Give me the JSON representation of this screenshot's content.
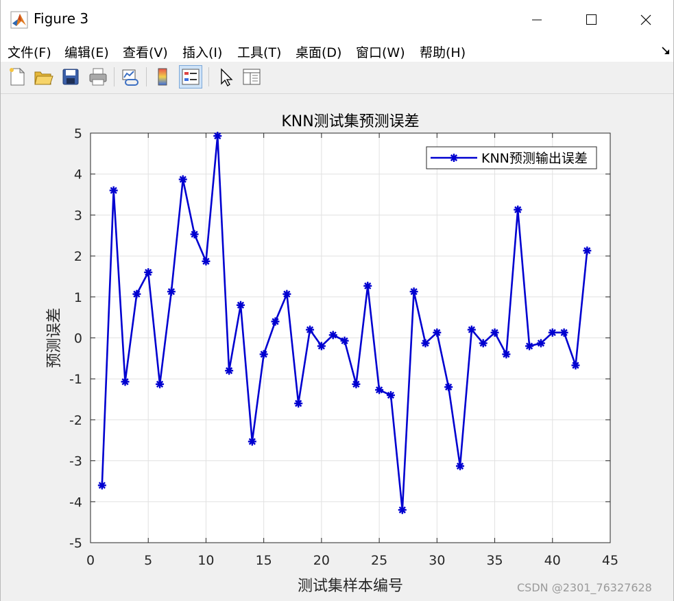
{
  "window": {
    "title": "Figure 3",
    "controls": {
      "minimize": "minimize",
      "maximize": "maximize",
      "close": "close"
    }
  },
  "menu": {
    "items": [
      "文件(F)",
      "编辑(E)",
      "查看(V)",
      "插入(I)",
      "工具(T)",
      "桌面(D)",
      "窗口(W)",
      "帮助(H)"
    ]
  },
  "toolbar": {
    "icons": [
      "new-figure-icon",
      "open-file-icon",
      "save-icon",
      "print-icon",
      "link-plot-icon",
      "colorbar-icon",
      "legend-icon",
      "edit-plot-arrow-icon",
      "property-inspector-icon"
    ]
  },
  "watermark": "CSDN @2301_76327628",
  "colors": {
    "series": "#0000d0",
    "grid": "#e1e1e1",
    "axes": "#262626"
  },
  "chart_data": {
    "type": "line",
    "title": "KNN测试集预测误差",
    "xlabel": "测试集样本编号",
    "ylabel": "预测误差",
    "xlim": [
      0,
      45
    ],
    "ylim": [
      -5,
      5
    ],
    "xticks": [
      0,
      5,
      10,
      15,
      20,
      25,
      30,
      35,
      40,
      45
    ],
    "yticks": [
      -5,
      -4,
      -3,
      -2,
      -1,
      0,
      1,
      2,
      3,
      4,
      5
    ],
    "grid": true,
    "legend_position": "top-right",
    "marker": "asterisk",
    "series": [
      {
        "name": "KNN预测输出误差",
        "color": "#0000d0",
        "x": [
          1,
          2,
          3,
          4,
          5,
          6,
          7,
          8,
          9,
          10,
          11,
          12,
          13,
          14,
          15,
          16,
          17,
          18,
          19,
          20,
          21,
          22,
          23,
          24,
          25,
          26,
          27,
          28,
          29,
          30,
          31,
          32,
          33,
          34,
          35,
          36,
          37,
          38,
          39,
          40,
          41,
          42,
          43
        ],
        "y": [
          -3.6,
          3.6,
          -1.07,
          1.07,
          1.6,
          -1.13,
          1.13,
          3.87,
          2.53,
          1.87,
          4.93,
          -0.8,
          0.8,
          -2.53,
          -0.4,
          0.4,
          1.07,
          -1.6,
          0.2,
          -0.2,
          0.07,
          -0.07,
          -1.13,
          1.27,
          -1.27,
          -1.4,
          -4.2,
          1.13,
          -0.13,
          0.13,
          -1.2,
          -3.13,
          0.2,
          -0.13,
          0.13,
          -0.4,
          3.13,
          -0.2,
          -0.13,
          0.13,
          0.13,
          -0.67,
          2.13
        ]
      }
    ]
  }
}
